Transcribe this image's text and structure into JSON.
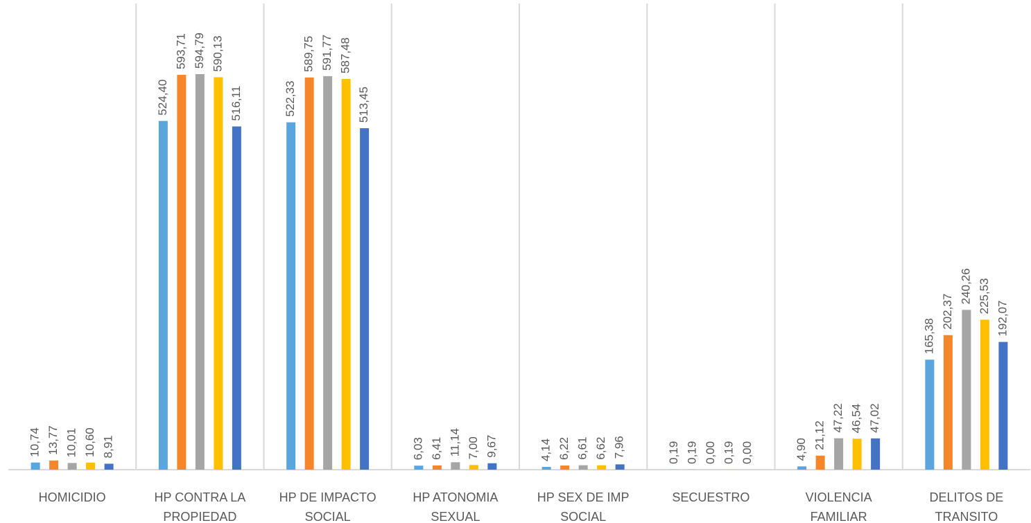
{
  "chart_data": {
    "type": "bar",
    "categories": [
      "HOMICIDIO",
      "HP CONTRA LA PROPIEDAD",
      "HP DE IMPACTO SOCIAL",
      "HP ATONOMIA SEXUAL",
      "HP SEX DE IMP SOCIAL",
      "SECUESTRO",
      "VIOLENCIA FAMILIAR",
      "DELITOS DE TRANSITO"
    ],
    "series": [
      {
        "color": "#5aa5dd",
        "values": [
          10.74,
          524.4,
          522.33,
          6.03,
          4.14,
          0.19,
          4.9,
          165.38
        ],
        "value_labels": [
          "10,74",
          "524,40",
          "522,33",
          "6,03",
          "4,14",
          "0,19",
          "4,90",
          "165,38"
        ]
      },
      {
        "color": "#f5862a",
        "values": [
          13.77,
          593.71,
          589.75,
          6.41,
          6.22,
          0.19,
          21.12,
          202.37
        ],
        "value_labels": [
          "13,77",
          "593,71",
          "589,75",
          "6,41",
          "6,22",
          "0,19",
          "21,12",
          "202,37"
        ]
      },
      {
        "color": "#a5a5a5",
        "values": [
          10.01,
          594.79,
          591.77,
          11.14,
          6.61,
          0.0,
          47.22,
          240.26
        ],
        "value_labels": [
          "10,01",
          "594,79",
          "591,77",
          "11,14",
          "6,61",
          "0,00",
          "47,22",
          "240,26"
        ]
      },
      {
        "color": "#ffc000",
        "values": [
          10.6,
          590.13,
          587.48,
          7.0,
          6.62,
          0.19,
          46.54,
          225.53
        ],
        "value_labels": [
          "10,60",
          "590,13",
          "587,48",
          "7,00",
          "6,62",
          "0,19",
          "46,54",
          "225,53"
        ]
      },
      {
        "color": "#4472c4",
        "values": [
          8.91,
          516.11,
          513.45,
          9.67,
          7.96,
          0.0,
          47.02,
          192.07
        ],
        "value_labels": [
          "8,91",
          "516,11",
          "513,45",
          "9,67",
          "7,96",
          "0,00",
          "47,02",
          "192,07"
        ]
      }
    ]
  }
}
